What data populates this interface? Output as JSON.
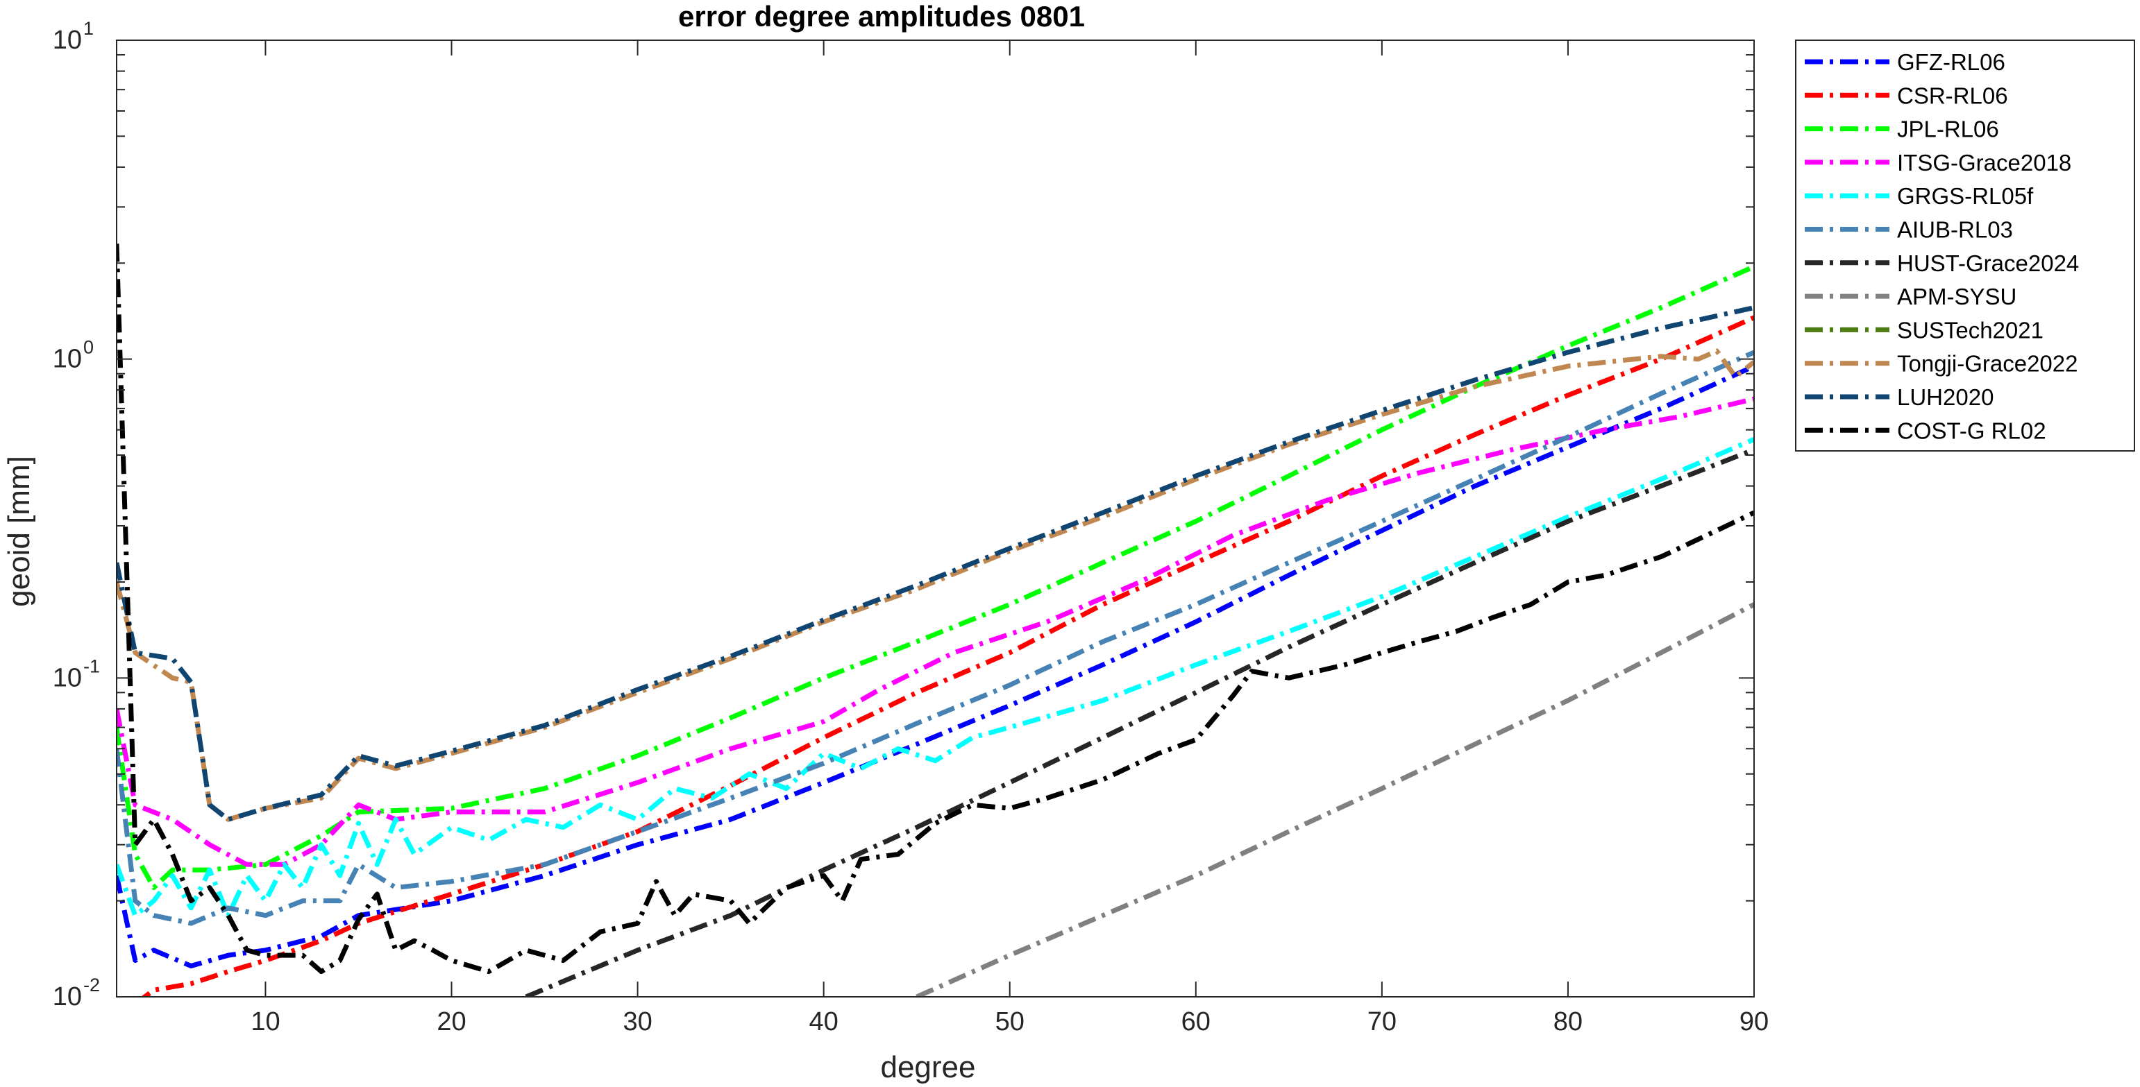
{
  "chart_data": {
    "type": "line",
    "title": "error degree amplitudes 0801",
    "xlabel": "degree",
    "ylabel": "geoid [mm]",
    "xlim": [
      2,
      90
    ],
    "ylim": [
      0.01,
      10
    ],
    "yscale": "log",
    "grid": false,
    "legend_position": "outside-right",
    "x_ticks": [
      10,
      20,
      30,
      40,
      50,
      60,
      70,
      80,
      90
    ],
    "y_tick_labels": [
      {
        "base": "10",
        "exp": "-2",
        "value": 0.01
      },
      {
        "base": "10",
        "exp": "-1",
        "value": 0.1
      },
      {
        "base": "10",
        "exp": "0",
        "value": 1
      },
      {
        "base": "10",
        "exp": "1",
        "value": 10
      }
    ],
    "series": [
      {
        "name": "GFZ-RL06",
        "color": "#0000ff",
        "dash": "dashdot",
        "points": [
          [
            2,
            0.024
          ],
          [
            3,
            0.013
          ],
          [
            4,
            0.014
          ],
          [
            6,
            0.0125
          ],
          [
            8,
            0.0135
          ],
          [
            10,
            0.014
          ],
          [
            13,
            0.0155
          ],
          [
            15,
            0.018
          ],
          [
            20,
            0.02
          ],
          [
            25,
            0.024
          ],
          [
            30,
            0.03
          ],
          [
            35,
            0.036
          ],
          [
            40,
            0.047
          ],
          [
            45,
            0.062
          ],
          [
            50,
            0.082
          ],
          [
            55,
            0.11
          ],
          [
            60,
            0.15
          ],
          [
            65,
            0.21
          ],
          [
            70,
            0.29
          ],
          [
            75,
            0.4
          ],
          [
            80,
            0.53
          ],
          [
            85,
            0.7
          ],
          [
            90,
            0.95
          ]
        ]
      },
      {
        "name": "CSR-RL06",
        "color": "#ff0000",
        "dash": "dashdot",
        "points": [
          [
            3,
            0.0095
          ],
          [
            4,
            0.0105
          ],
          [
            6,
            0.011
          ],
          [
            8,
            0.012
          ],
          [
            10,
            0.013
          ],
          [
            13,
            0.015
          ],
          [
            15,
            0.017
          ],
          [
            20,
            0.021
          ],
          [
            25,
            0.026
          ],
          [
            30,
            0.033
          ],
          [
            35,
            0.046
          ],
          [
            40,
            0.065
          ],
          [
            45,
            0.09
          ],
          [
            50,
            0.12
          ],
          [
            55,
            0.17
          ],
          [
            60,
            0.23
          ],
          [
            65,
            0.31
          ],
          [
            70,
            0.43
          ],
          [
            75,
            0.58
          ],
          [
            80,
            0.77
          ],
          [
            85,
            1.0
          ],
          [
            90,
            1.35
          ]
        ]
      },
      {
        "name": "JPL-RL06",
        "color": "#00ff00",
        "dash": "dashdot",
        "points": [
          [
            2,
            0.07
          ],
          [
            3,
            0.028
          ],
          [
            4,
            0.022
          ],
          [
            5,
            0.025
          ],
          [
            7,
            0.025
          ],
          [
            10,
            0.026
          ],
          [
            13,
            0.032
          ],
          [
            15,
            0.038
          ],
          [
            20,
            0.039
          ],
          [
            25,
            0.045
          ],
          [
            30,
            0.057
          ],
          [
            35,
            0.075
          ],
          [
            40,
            0.1
          ],
          [
            45,
            0.13
          ],
          [
            50,
            0.17
          ],
          [
            55,
            0.23
          ],
          [
            60,
            0.31
          ],
          [
            65,
            0.43
          ],
          [
            70,
            0.6
          ],
          [
            75,
            0.82
          ],
          [
            80,
            1.1
          ],
          [
            85,
            1.45
          ],
          [
            90,
            1.95
          ]
        ]
      },
      {
        "name": "ITSG-Grace2018",
        "color": "#ff00ff",
        "dash": "dashdot",
        "points": [
          [
            2,
            0.08
          ],
          [
            3,
            0.04
          ],
          [
            5,
            0.036
          ],
          [
            7,
            0.03
          ],
          [
            9,
            0.026
          ],
          [
            11,
            0.026
          ],
          [
            13,
            0.03
          ],
          [
            15,
            0.04
          ],
          [
            17,
            0.036
          ],
          [
            20,
            0.038
          ],
          [
            25,
            0.038
          ],
          [
            30,
            0.047
          ],
          [
            35,
            0.06
          ],
          [
            40,
            0.073
          ],
          [
            43,
            0.092
          ],
          [
            47,
            0.12
          ],
          [
            52,
            0.15
          ],
          [
            57,
            0.2
          ],
          [
            62,
            0.28
          ],
          [
            67,
            0.36
          ],
          [
            72,
            0.44
          ],
          [
            77,
            0.52
          ],
          [
            82,
            0.6
          ],
          [
            86,
            0.66
          ],
          [
            90,
            0.75
          ]
        ]
      },
      {
        "name": "GRGS-RL05f",
        "color": "#00ffff",
        "dash": "dashdot",
        "points": [
          [
            2,
            0.026
          ],
          [
            3,
            0.018
          ],
          [
            4,
            0.02
          ],
          [
            5,
            0.024
          ],
          [
            6,
            0.019
          ],
          [
            7,
            0.025
          ],
          [
            8,
            0.018
          ],
          [
            9,
            0.024
          ],
          [
            10,
            0.02
          ],
          [
            11,
            0.026
          ],
          [
            12,
            0.022
          ],
          [
            13,
            0.03
          ],
          [
            14,
            0.024
          ],
          [
            15,
            0.035
          ],
          [
            16,
            0.026
          ],
          [
            17,
            0.036
          ],
          [
            18,
            0.028
          ],
          [
            20,
            0.034
          ],
          [
            22,
            0.031
          ],
          [
            24,
            0.036
          ],
          [
            26,
            0.034
          ],
          [
            28,
            0.04
          ],
          [
            30,
            0.036
          ],
          [
            32,
            0.045
          ],
          [
            34,
            0.042
          ],
          [
            36,
            0.05
          ],
          [
            38,
            0.045
          ],
          [
            40,
            0.058
          ],
          [
            42,
            0.052
          ],
          [
            44,
            0.06
          ],
          [
            46,
            0.055
          ],
          [
            48,
            0.065
          ],
          [
            50,
            0.07
          ],
          [
            55,
            0.085
          ],
          [
            60,
            0.11
          ],
          [
            65,
            0.14
          ],
          [
            70,
            0.18
          ],
          [
            75,
            0.24
          ],
          [
            80,
            0.32
          ],
          [
            85,
            0.42
          ],
          [
            90,
            0.56
          ]
        ]
      },
      {
        "name": "AIUB-RL03",
        "color": "#4682b4",
        "dash": "dashdot",
        "points": [
          [
            2,
            0.06
          ],
          [
            3,
            0.02
          ],
          [
            4,
            0.018
          ],
          [
            6,
            0.017
          ],
          [
            8,
            0.019
          ],
          [
            10,
            0.018
          ],
          [
            12,
            0.02
          ],
          [
            14,
            0.02
          ],
          [
            15,
            0.026
          ],
          [
            17,
            0.022
          ],
          [
            20,
            0.023
          ],
          [
            25,
            0.026
          ],
          [
            30,
            0.033
          ],
          [
            35,
            0.042
          ],
          [
            40,
            0.054
          ],
          [
            45,
            0.072
          ],
          [
            50,
            0.095
          ],
          [
            55,
            0.13
          ],
          [
            60,
            0.17
          ],
          [
            65,
            0.23
          ],
          [
            70,
            0.31
          ],
          [
            75,
            0.42
          ],
          [
            80,
            0.57
          ],
          [
            85,
            0.78
          ],
          [
            90,
            1.05
          ]
        ]
      },
      {
        "name": "HUST-Grace2024",
        "color": "#262626",
        "dash": "dashdot",
        "points": [
          [
            24,
            0.01
          ],
          [
            30,
            0.014
          ],
          [
            35,
            0.018
          ],
          [
            40,
            0.025
          ],
          [
            45,
            0.034
          ],
          [
            50,
            0.047
          ],
          [
            55,
            0.065
          ],
          [
            60,
            0.09
          ],
          [
            65,
            0.125
          ],
          [
            70,
            0.17
          ],
          [
            75,
            0.23
          ],
          [
            80,
            0.31
          ],
          [
            85,
            0.4
          ],
          [
            90,
            0.52
          ]
        ]
      },
      {
        "name": "APM-SYSU",
        "color": "#808080",
        "dash": "dashdot",
        "points": [
          [
            45,
            0.01
          ],
          [
            50,
            0.0135
          ],
          [
            55,
            0.018
          ],
          [
            60,
            0.024
          ],
          [
            65,
            0.033
          ],
          [
            70,
            0.045
          ],
          [
            75,
            0.062
          ],
          [
            80,
            0.085
          ],
          [
            85,
            0.12
          ],
          [
            90,
            0.17
          ]
        ]
      },
      {
        "name": "SUSTech2021",
        "color": "#4b7d12",
        "dash": "dashdot",
        "points": []
      },
      {
        "name": "Tongji-Grace2022",
        "color": "#c08850",
        "dash": "dashdot",
        "points": [
          [
            2,
            0.2
          ],
          [
            3,
            0.12
          ],
          [
            5,
            0.1
          ],
          [
            6,
            0.097
          ],
          [
            7,
            0.04
          ],
          [
            8,
            0.036
          ],
          [
            10,
            0.039
          ],
          [
            13,
            0.042
          ],
          [
            15,
            0.056
          ],
          [
            17,
            0.052
          ],
          [
            20,
            0.058
          ],
          [
            25,
            0.07
          ],
          [
            30,
            0.09
          ],
          [
            35,
            0.115
          ],
          [
            40,
            0.15
          ],
          [
            45,
            0.19
          ],
          [
            50,
            0.25
          ],
          [
            55,
            0.32
          ],
          [
            60,
            0.42
          ],
          [
            65,
            0.54
          ],
          [
            70,
            0.67
          ],
          [
            75,
            0.82
          ],
          [
            80,
            0.95
          ],
          [
            85,
            1.02
          ],
          [
            87,
            1.0
          ],
          [
            88,
            1.06
          ],
          [
            89,
            0.88
          ],
          [
            90,
            0.98
          ]
        ]
      },
      {
        "name": "LUH2020",
        "color": "#0f4570",
        "dash": "dashdot",
        "points": [
          [
            2,
            0.23
          ],
          [
            3,
            0.12
          ],
          [
            5,
            0.115
          ],
          [
            6,
            0.097
          ],
          [
            7,
            0.04
          ],
          [
            8,
            0.036
          ],
          [
            10,
            0.039
          ],
          [
            13,
            0.043
          ],
          [
            15,
            0.057
          ],
          [
            17,
            0.053
          ],
          [
            20,
            0.059
          ],
          [
            25,
            0.071
          ],
          [
            30,
            0.092
          ],
          [
            35,
            0.117
          ],
          [
            40,
            0.152
          ],
          [
            45,
            0.195
          ],
          [
            50,
            0.255
          ],
          [
            55,
            0.33
          ],
          [
            60,
            0.43
          ],
          [
            65,
            0.55
          ],
          [
            70,
            0.69
          ],
          [
            75,
            0.86
          ],
          [
            80,
            1.05
          ],
          [
            85,
            1.25
          ],
          [
            90,
            1.45
          ]
        ]
      },
      {
        "name": "COST-G RL02",
        "color": "#000000",
        "dash": "dashdot",
        "points": [
          [
            2,
            2.3
          ],
          [
            3,
            0.03
          ],
          [
            4,
            0.036
          ],
          [
            5,
            0.028
          ],
          [
            6,
            0.02
          ],
          [
            7,
            0.022
          ],
          [
            8,
            0.018
          ],
          [
            9,
            0.014
          ],
          [
            10,
            0.0135
          ],
          [
            12,
            0.0135
          ],
          [
            13,
            0.012
          ],
          [
            14,
            0.013
          ],
          [
            15,
            0.0175
          ],
          [
            16,
            0.021
          ],
          [
            17,
            0.014
          ],
          [
            18,
            0.015
          ],
          [
            19,
            0.014
          ],
          [
            20,
            0.013
          ],
          [
            22,
            0.012
          ],
          [
            24,
            0.014
          ],
          [
            26,
            0.013
          ],
          [
            28,
            0.016
          ],
          [
            30,
            0.017
          ],
          [
            31,
            0.023
          ],
          [
            32,
            0.018
          ],
          [
            33,
            0.021
          ],
          [
            35,
            0.02
          ],
          [
            36,
            0.017
          ],
          [
            38,
            0.022
          ],
          [
            40,
            0.024
          ],
          [
            41,
            0.02
          ],
          [
            42,
            0.027
          ],
          [
            44,
            0.028
          ],
          [
            46,
            0.035
          ],
          [
            48,
            0.04
          ],
          [
            50,
            0.039
          ],
          [
            52,
            0.042
          ],
          [
            55,
            0.048
          ],
          [
            58,
            0.058
          ],
          [
            60,
            0.064
          ],
          [
            62,
            0.088
          ],
          [
            63,
            0.105
          ],
          [
            65,
            0.1
          ],
          [
            68,
            0.11
          ],
          [
            70,
            0.12
          ],
          [
            72,
            0.13
          ],
          [
            74,
            0.14
          ],
          [
            76,
            0.155
          ],
          [
            78,
            0.17
          ],
          [
            80,
            0.2
          ],
          [
            82,
            0.21
          ],
          [
            85,
            0.24
          ],
          [
            88,
            0.29
          ],
          [
            90,
            0.33
          ]
        ]
      }
    ]
  }
}
